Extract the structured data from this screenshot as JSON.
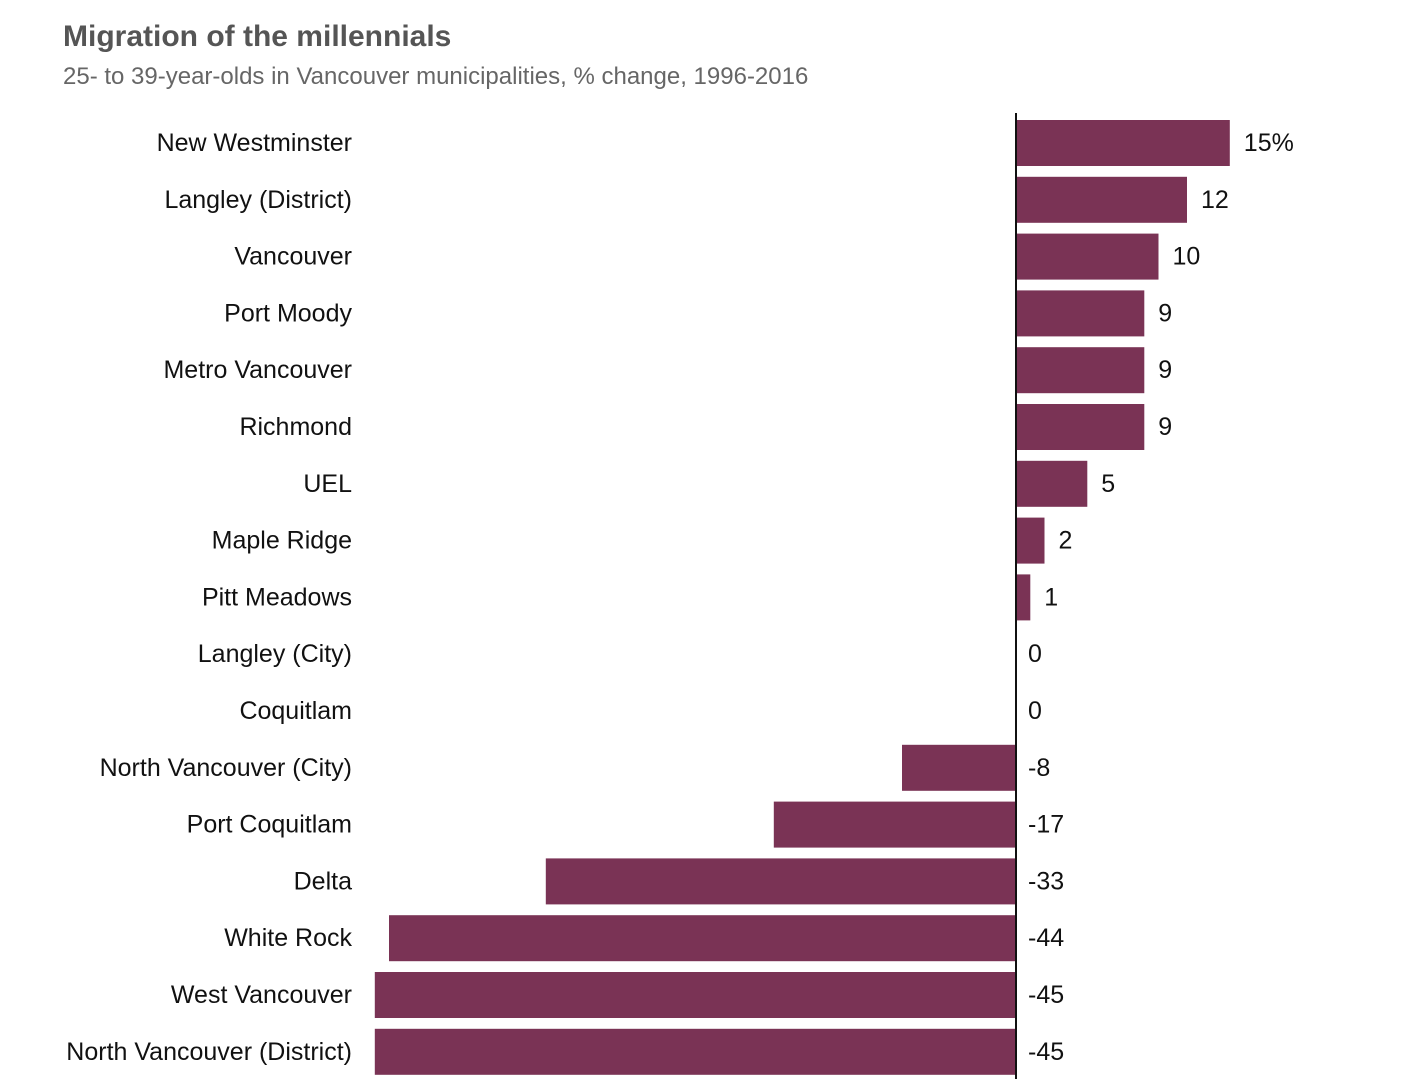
{
  "chart_data": {
    "type": "bar",
    "orientation": "horizontal",
    "title": "Migration of the millennials",
    "subtitle": "25- to 39-year-olds in Vancouver municipalities, % change, 1996-2016",
    "categories": [
      "New Westminster",
      "Langley (District)",
      "Vancouver",
      "Port Moody",
      "Metro Vancouver",
      "Richmond",
      "UEL",
      "Maple Ridge",
      "Pitt Meadows",
      "Langley (City)",
      "Coquitlam",
      "North Vancouver (City)",
      "Port Coquitlam",
      "Delta",
      "White Rock",
      "West Vancouver",
      "North Vancouver (District)"
    ],
    "values": [
      15,
      12,
      10,
      9,
      9,
      9,
      5,
      2,
      1,
      0,
      0,
      -8,
      -17,
      -33,
      -44,
      -45,
      -45
    ],
    "value_labels": [
      "15%",
      "12",
      "10",
      "9",
      "9",
      "9",
      "5",
      "2",
      "1",
      "0",
      "0",
      "-8",
      "-17",
      "-33",
      "-44",
      "-45",
      "-45"
    ],
    "xlim": [
      -45,
      15
    ],
    "grid": false,
    "legend": "none",
    "colors": {
      "bar": "#7a3355",
      "axis": "#111111",
      "title": "#555555",
      "subtitle": "#666666",
      "text": "#111111"
    }
  }
}
